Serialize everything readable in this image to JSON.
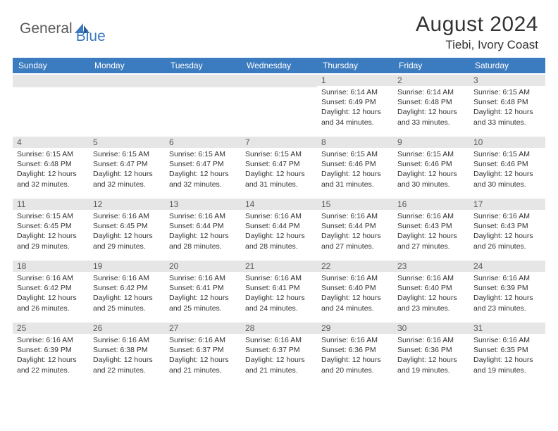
{
  "logo": {
    "text_general": "General",
    "text_blue": "Blue"
  },
  "header": {
    "month_title": "August 2024",
    "location": "Tiebi, Ivory Coast"
  },
  "colors": {
    "header_bg": "#3b7bbf",
    "daynum_bg": "#e6e6e6",
    "text_dark": "#333333",
    "text_gray": "#5a5a5a",
    "logo_blue": "#3b7bbf"
  },
  "day_headers": [
    "Sunday",
    "Monday",
    "Tuesday",
    "Wednesday",
    "Thursday",
    "Friday",
    "Saturday"
  ],
  "weeks": [
    [
      {
        "day": "",
        "sunrise": "",
        "sunset": "",
        "daylight": ""
      },
      {
        "day": "",
        "sunrise": "",
        "sunset": "",
        "daylight": ""
      },
      {
        "day": "",
        "sunrise": "",
        "sunset": "",
        "daylight": ""
      },
      {
        "day": "",
        "sunrise": "",
        "sunset": "",
        "daylight": ""
      },
      {
        "day": "1",
        "sunrise": "Sunrise: 6:14 AM",
        "sunset": "Sunset: 6:49 PM",
        "daylight": "Daylight: 12 hours and 34 minutes."
      },
      {
        "day": "2",
        "sunrise": "Sunrise: 6:14 AM",
        "sunset": "Sunset: 6:48 PM",
        "daylight": "Daylight: 12 hours and 33 minutes."
      },
      {
        "day": "3",
        "sunrise": "Sunrise: 6:15 AM",
        "sunset": "Sunset: 6:48 PM",
        "daylight": "Daylight: 12 hours and 33 minutes."
      }
    ],
    [
      {
        "day": "4",
        "sunrise": "Sunrise: 6:15 AM",
        "sunset": "Sunset: 6:48 PM",
        "daylight": "Daylight: 12 hours and 32 minutes."
      },
      {
        "day": "5",
        "sunrise": "Sunrise: 6:15 AM",
        "sunset": "Sunset: 6:47 PM",
        "daylight": "Daylight: 12 hours and 32 minutes."
      },
      {
        "day": "6",
        "sunrise": "Sunrise: 6:15 AM",
        "sunset": "Sunset: 6:47 PM",
        "daylight": "Daylight: 12 hours and 32 minutes."
      },
      {
        "day": "7",
        "sunrise": "Sunrise: 6:15 AM",
        "sunset": "Sunset: 6:47 PM",
        "daylight": "Daylight: 12 hours and 31 minutes."
      },
      {
        "day": "8",
        "sunrise": "Sunrise: 6:15 AM",
        "sunset": "Sunset: 6:46 PM",
        "daylight": "Daylight: 12 hours and 31 minutes."
      },
      {
        "day": "9",
        "sunrise": "Sunrise: 6:15 AM",
        "sunset": "Sunset: 6:46 PM",
        "daylight": "Daylight: 12 hours and 30 minutes."
      },
      {
        "day": "10",
        "sunrise": "Sunrise: 6:15 AM",
        "sunset": "Sunset: 6:46 PM",
        "daylight": "Daylight: 12 hours and 30 minutes."
      }
    ],
    [
      {
        "day": "11",
        "sunrise": "Sunrise: 6:15 AM",
        "sunset": "Sunset: 6:45 PM",
        "daylight": "Daylight: 12 hours and 29 minutes."
      },
      {
        "day": "12",
        "sunrise": "Sunrise: 6:16 AM",
        "sunset": "Sunset: 6:45 PM",
        "daylight": "Daylight: 12 hours and 29 minutes."
      },
      {
        "day": "13",
        "sunrise": "Sunrise: 6:16 AM",
        "sunset": "Sunset: 6:44 PM",
        "daylight": "Daylight: 12 hours and 28 minutes."
      },
      {
        "day": "14",
        "sunrise": "Sunrise: 6:16 AM",
        "sunset": "Sunset: 6:44 PM",
        "daylight": "Daylight: 12 hours and 28 minutes."
      },
      {
        "day": "15",
        "sunrise": "Sunrise: 6:16 AM",
        "sunset": "Sunset: 6:44 PM",
        "daylight": "Daylight: 12 hours and 27 minutes."
      },
      {
        "day": "16",
        "sunrise": "Sunrise: 6:16 AM",
        "sunset": "Sunset: 6:43 PM",
        "daylight": "Daylight: 12 hours and 27 minutes."
      },
      {
        "day": "17",
        "sunrise": "Sunrise: 6:16 AM",
        "sunset": "Sunset: 6:43 PM",
        "daylight": "Daylight: 12 hours and 26 minutes."
      }
    ],
    [
      {
        "day": "18",
        "sunrise": "Sunrise: 6:16 AM",
        "sunset": "Sunset: 6:42 PM",
        "daylight": "Daylight: 12 hours and 26 minutes."
      },
      {
        "day": "19",
        "sunrise": "Sunrise: 6:16 AM",
        "sunset": "Sunset: 6:42 PM",
        "daylight": "Daylight: 12 hours and 25 minutes."
      },
      {
        "day": "20",
        "sunrise": "Sunrise: 6:16 AM",
        "sunset": "Sunset: 6:41 PM",
        "daylight": "Daylight: 12 hours and 25 minutes."
      },
      {
        "day": "21",
        "sunrise": "Sunrise: 6:16 AM",
        "sunset": "Sunset: 6:41 PM",
        "daylight": "Daylight: 12 hours and 24 minutes."
      },
      {
        "day": "22",
        "sunrise": "Sunrise: 6:16 AM",
        "sunset": "Sunset: 6:40 PM",
        "daylight": "Daylight: 12 hours and 24 minutes."
      },
      {
        "day": "23",
        "sunrise": "Sunrise: 6:16 AM",
        "sunset": "Sunset: 6:40 PM",
        "daylight": "Daylight: 12 hours and 23 minutes."
      },
      {
        "day": "24",
        "sunrise": "Sunrise: 6:16 AM",
        "sunset": "Sunset: 6:39 PM",
        "daylight": "Daylight: 12 hours and 23 minutes."
      }
    ],
    [
      {
        "day": "25",
        "sunrise": "Sunrise: 6:16 AM",
        "sunset": "Sunset: 6:39 PM",
        "daylight": "Daylight: 12 hours and 22 minutes."
      },
      {
        "day": "26",
        "sunrise": "Sunrise: 6:16 AM",
        "sunset": "Sunset: 6:38 PM",
        "daylight": "Daylight: 12 hours and 22 minutes."
      },
      {
        "day": "27",
        "sunrise": "Sunrise: 6:16 AM",
        "sunset": "Sunset: 6:37 PM",
        "daylight": "Daylight: 12 hours and 21 minutes."
      },
      {
        "day": "28",
        "sunrise": "Sunrise: 6:16 AM",
        "sunset": "Sunset: 6:37 PM",
        "daylight": "Daylight: 12 hours and 21 minutes."
      },
      {
        "day": "29",
        "sunrise": "Sunrise: 6:16 AM",
        "sunset": "Sunset: 6:36 PM",
        "daylight": "Daylight: 12 hours and 20 minutes."
      },
      {
        "day": "30",
        "sunrise": "Sunrise: 6:16 AM",
        "sunset": "Sunset: 6:36 PM",
        "daylight": "Daylight: 12 hours and 19 minutes."
      },
      {
        "day": "31",
        "sunrise": "Sunrise: 6:16 AM",
        "sunset": "Sunset: 6:35 PM",
        "daylight": "Daylight: 12 hours and 19 minutes."
      }
    ]
  ]
}
